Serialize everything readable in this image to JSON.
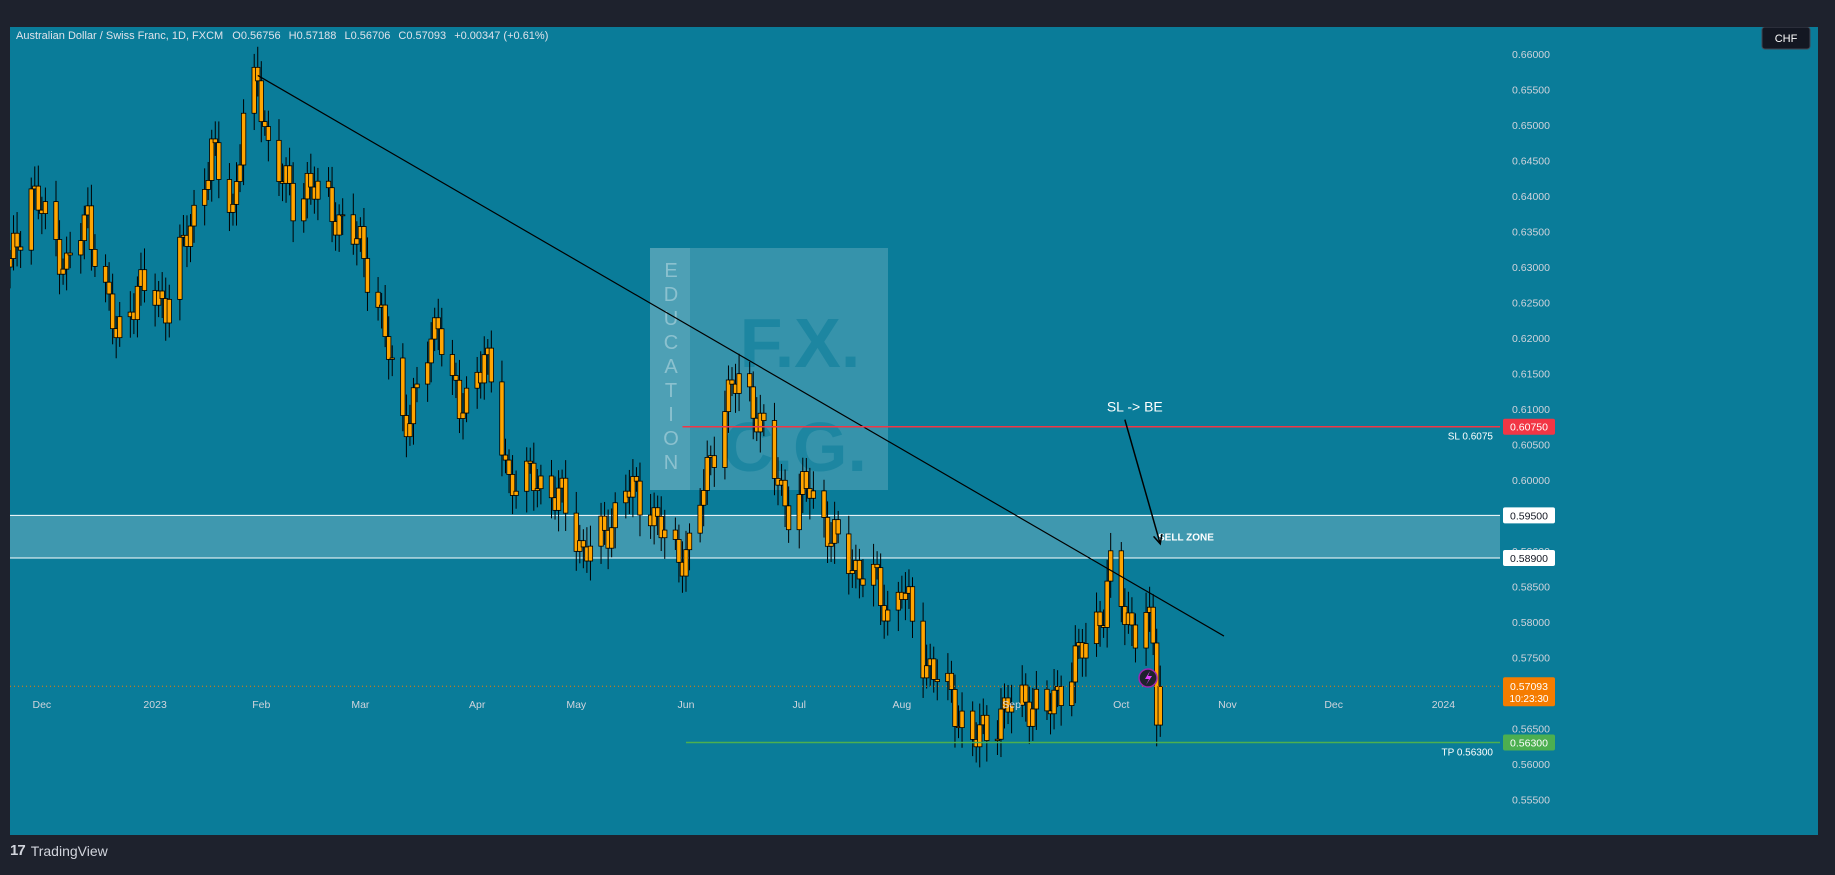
{
  "header": {
    "symbol": "Australian Dollar / Swiss Franc, 1D, FXCM",
    "o_label": "O",
    "o": "0.56756",
    "h_label": "H",
    "h": "0.57188",
    "l_label": "L",
    "l": "0.56706",
    "c_label": "C",
    "c": "0.57093",
    "change": "+0.00347 (+0.61%)"
  },
  "currency_button": "CHF",
  "footer": {
    "brand": "TradingView"
  },
  "watermark": {
    "vertical": "EDUCATION",
    "line1": "F.X.",
    "line2": "C.G."
  },
  "colors": {
    "background": "#0a7c99",
    "frame": "#1e222d",
    "candle_body": "#ffa500",
    "candle_outline": "#000000",
    "trendline": "#000000",
    "sl_line": "#f23645",
    "tp_line": "#4caf50",
    "zone_fill": "#ffffff",
    "price_badge": "#f57c00"
  },
  "chart_data": {
    "type": "candlestick",
    "y_ticks": [
      "0.66000",
      "0.65500",
      "0.65000",
      "0.64500",
      "0.64000",
      "0.63500",
      "0.63000",
      "0.62500",
      "0.62000",
      "0.61500",
      "0.61000",
      "0.60500",
      "0.60000",
      "0.59500",
      "0.59000",
      "0.58500",
      "0.58000",
      "0.57500",
      "0.57000",
      "0.56500",
      "0.56000",
      "0.55500"
    ],
    "y_tick_values": [
      0.66,
      0.655,
      0.65,
      0.645,
      0.64,
      0.635,
      0.63,
      0.625,
      0.62,
      0.615,
      0.61,
      0.605,
      0.6,
      0.595,
      0.59,
      0.585,
      0.58,
      0.575,
      0.57,
      0.565,
      0.56,
      0.555
    ],
    "ylim": [
      0.5525,
      0.6627
    ],
    "x_ticks": [
      {
        "label": "Dec",
        "date": "2022-12-01"
      },
      {
        "label": "2023",
        "date": "2023-01-02"
      },
      {
        "label": "Feb",
        "date": "2023-02-01"
      },
      {
        "label": "Mar",
        "date": "2023-03-01"
      },
      {
        "label": "Apr",
        "date": "2023-04-03"
      },
      {
        "label": "May",
        "date": "2023-05-01"
      },
      {
        "label": "Jun",
        "date": "2023-06-01"
      },
      {
        "label": "Jul",
        "date": "2023-07-03"
      },
      {
        "label": "Aug",
        "date": "2023-08-01"
      },
      {
        "label": "Sep",
        "date": "2023-09-01"
      },
      {
        "label": "Oct",
        "date": "2023-10-02"
      },
      {
        "label": "Nov",
        "date": "2023-11-01"
      },
      {
        "label": "Dec",
        "date": "2023-12-01"
      },
      {
        "label": "2024",
        "date": "2024-01-01"
      }
    ],
    "xlim": [
      "2022-11-22",
      "2024-01-17"
    ],
    "anchors": [
      {
        "date": "2022-11-22",
        "close": 0.63
      },
      {
        "date": "2022-11-28",
        "close": 0.641
      },
      {
        "date": "2022-12-08",
        "close": 0.63
      },
      {
        "date": "2022-12-14",
        "close": 0.637
      },
      {
        "date": "2022-12-22",
        "close": 0.62
      },
      {
        "date": "2022-12-28",
        "close": 0.627
      },
      {
        "date": "2023-01-05",
        "close": 0.625
      },
      {
        "date": "2023-01-12",
        "close": 0.636
      },
      {
        "date": "2023-01-18",
        "close": 0.646
      },
      {
        "date": "2023-01-24",
        "close": 0.638
      },
      {
        "date": "2023-01-27",
        "close": 0.651
      },
      {
        "date": "2023-01-31",
        "close": 0.656
      },
      {
        "date": "2023-02-03",
        "close": 0.647
      },
      {
        "date": "2023-02-10",
        "close": 0.639
      },
      {
        "date": "2023-02-14",
        "close": 0.642
      },
      {
        "date": "2023-02-21",
        "close": 0.638
      },
      {
        "date": "2023-03-01",
        "close": 0.633
      },
      {
        "date": "2023-03-06",
        "close": 0.625
      },
      {
        "date": "2023-03-13",
        "close": 0.608
      },
      {
        "date": "2023-03-17",
        "close": 0.612
      },
      {
        "date": "2023-03-23",
        "close": 0.623
      },
      {
        "date": "2023-03-29",
        "close": 0.609
      },
      {
        "date": "2023-04-05",
        "close": 0.618
      },
      {
        "date": "2023-04-12",
        "close": 0.6
      },
      {
        "date": "2023-04-20",
        "close": 0.6
      },
      {
        "date": "2023-04-27",
        "close": 0.597
      },
      {
        "date": "2023-05-03",
        "close": 0.59
      },
      {
        "date": "2023-05-09",
        "close": 0.592
      },
      {
        "date": "2023-05-15",
        "close": 0.599
      },
      {
        "date": "2023-05-22",
        "close": 0.596
      },
      {
        "date": "2023-05-29",
        "close": 0.589
      },
      {
        "date": "2023-06-02",
        "close": 0.5905
      },
      {
        "date": "2023-06-07",
        "close": 0.601
      },
      {
        "date": "2023-06-12",
        "close": 0.611
      },
      {
        "date": "2023-06-16",
        "close": 0.614
      },
      {
        "date": "2023-06-20",
        "close": 0.611
      },
      {
        "date": "2023-06-26",
        "close": 0.601
      },
      {
        "date": "2023-06-30",
        "close": 0.596
      },
      {
        "date": "2023-07-06",
        "close": 0.599
      },
      {
        "date": "2023-07-12",
        "close": 0.592
      },
      {
        "date": "2023-07-18",
        "close": 0.588
      },
      {
        "date": "2023-07-24",
        "close": 0.586
      },
      {
        "date": "2023-07-28",
        "close": 0.581
      },
      {
        "date": "2023-08-01",
        "close": 0.585
      },
      {
        "date": "2023-08-07",
        "close": 0.575
      },
      {
        "date": "2023-08-14",
        "close": 0.57
      },
      {
        "date": "2023-08-21",
        "close": 0.563
      },
      {
        "date": "2023-08-25",
        "close": 0.565
      },
      {
        "date": "2023-08-31",
        "close": 0.568
      },
      {
        "date": "2023-09-05",
        "close": 0.569
      },
      {
        "date": "2023-09-11",
        "close": 0.567
      },
      {
        "date": "2023-09-15",
        "close": 0.571
      },
      {
        "date": "2023-09-21",
        "close": 0.576
      },
      {
        "date": "2023-09-27",
        "close": 0.582
      },
      {
        "date": "2023-09-29",
        "close": 0.587
      },
      {
        "date": "2023-10-03",
        "close": 0.581
      },
      {
        "date": "2023-10-06",
        "close": 0.579
      },
      {
        "date": "2023-10-09",
        "close": 0.5815
      },
      {
        "date": "2023-10-11",
        "close": 0.576
      },
      {
        "date": "2023-10-12",
        "close": 0.5675
      },
      {
        "date": "2023-10-13",
        "close": 0.5709
      }
    ],
    "trendline": {
      "from": {
        "date": "2023-01-31",
        "price": 0.657
      },
      "to": {
        "date": "2023-10-31",
        "price": 0.578
      }
    },
    "zone": {
      "label": "SELL ZONE",
      "top": 0.595,
      "bottom": 0.589
    },
    "sl_line": {
      "label": "SL 0.6075",
      "price": 0.6075,
      "from": "2023-05-31"
    },
    "tp_line": {
      "label": "TP 0.56300",
      "price": 0.563,
      "from": "2023-06-01"
    },
    "current_price": {
      "price": 0.57093,
      "timer": "10:23:30"
    },
    "annotation": {
      "text": "SL -> BE",
      "arrow_from": {
        "date": "2023-10-03",
        "price": 0.6085
      },
      "arrow_to": {
        "date": "2023-10-13",
        "price": 0.591
      }
    },
    "axis_badges": [
      {
        "label": "0.60750",
        "price": 0.6075,
        "color": "#f23645",
        "text_color": "#ffffff"
      },
      {
        "label": "0.59500",
        "price": 0.595,
        "color": "#ffffff",
        "text_color": "#131722"
      },
      {
        "label": "0.58900",
        "price": 0.589,
        "color": "#ffffff",
        "text_color": "#131722"
      },
      {
        "label": "0.56300",
        "price": 0.563,
        "color": "#4caf50",
        "text_color": "#ffffff"
      }
    ]
  }
}
